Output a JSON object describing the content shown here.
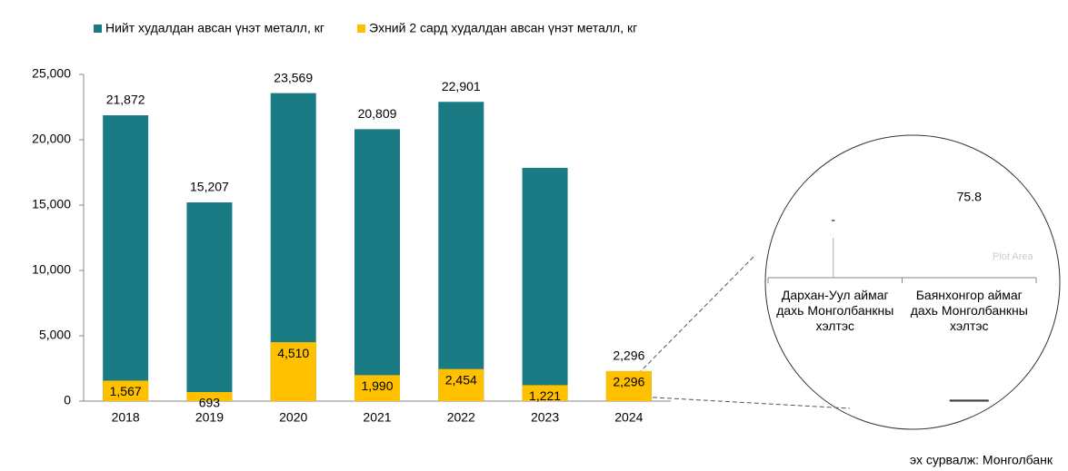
{
  "chart_data": [
    {
      "type": "bar",
      "categories": [
        "2018",
        "2019",
        "2020",
        "2021",
        "2022",
        "2023",
        "2024"
      ],
      "series": [
        {
          "name": "Нийт худалдан авсан үнэт металл, кг",
          "color": "#1a7b85",
          "values": [
            21872,
            15207,
            23569,
            20809,
            22901,
            17850,
            2296
          ],
          "value_labels": [
            "21,872",
            "15,207",
            "23,569",
            "20,809",
            "22,901",
            null,
            "2,296"
          ]
        },
        {
          "name": "Эхний 2 сард худалдан авсан үнэт металл, кг",
          "color": "#ffc000",
          "values": [
            1567,
            693,
            4510,
            1990,
            2454,
            1221,
            2296
          ],
          "value_labels": [
            "1,567",
            "693",
            "4,510",
            "1,990",
            "2,454",
            "1,221",
            "2,296"
          ]
        }
      ],
      "ylim": [
        0,
        25000
      ],
      "yticks": [
        0,
        {
          "value": 5000,
          "label": "5,000"
        },
        {
          "value": 10000,
          "label": "10,000"
        },
        {
          "value": 15000,
          "label": "15,000"
        },
        {
          "value": 20000,
          "label": "20,000"
        },
        {
          "value": 25000,
          "label": "25,000"
        }
      ],
      "grid": false,
      "source": "эх сурвалж: Монголбанк"
    },
    {
      "type": "bar",
      "categories": [
        "Дархан-Уул аймаг дахь Монголбанкны хэлтэс",
        "Баянхонгор аймаг дахь Монголбанкны хэлтэс"
      ],
      "values": [
        null,
        75.8
      ],
      "value_labels": [
        "-",
        "75.8"
      ],
      "color": "#ffc000",
      "ylim": [
        0,
        100
      ],
      "annotation": "Plot Area"
    }
  ]
}
